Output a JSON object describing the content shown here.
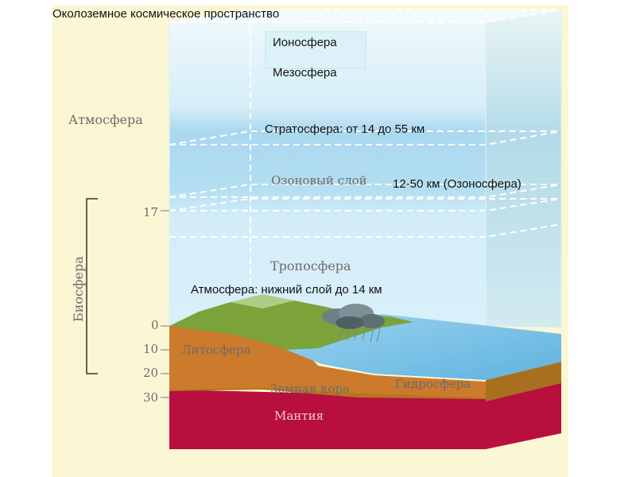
{
  "title": "Околоземное космическое пространство",
  "layers": {
    "ionosphere": "Ионосфера",
    "mesosphere": "Мезосфера",
    "atmosphere": "Атмосфера",
    "stratosphere": "Стратосфера: от 14 до 55 км",
    "ozone_layer": "Озоновый слой",
    "ozonosphere": "12-50 км (Озоносфера)",
    "troposphere": "Тропосфера",
    "lower_atmosphere": "Атмосфера: нижний слой до 14 км",
    "biosphere": "Биосфера",
    "lithosphere": "Литосфера",
    "earth_crust": "Земная кора",
    "hydrosphere": "Гидросфера",
    "mantle": "Мантия"
  },
  "scale": {
    "mark_17": "17",
    "mark_0": "0",
    "mark_10": "10",
    "mark_20": "20",
    "mark_30": "30"
  },
  "colors": {
    "panel_bg": "#fbf7d4",
    "sky_top": "#eaf6fb",
    "sky_band": "#a8d7ee",
    "land": "#7ba33a",
    "lithosphere": "#cc7a2c",
    "crust": "#b4761f",
    "water": "#7dc4e6",
    "mantle": "#b80f3f"
  }
}
